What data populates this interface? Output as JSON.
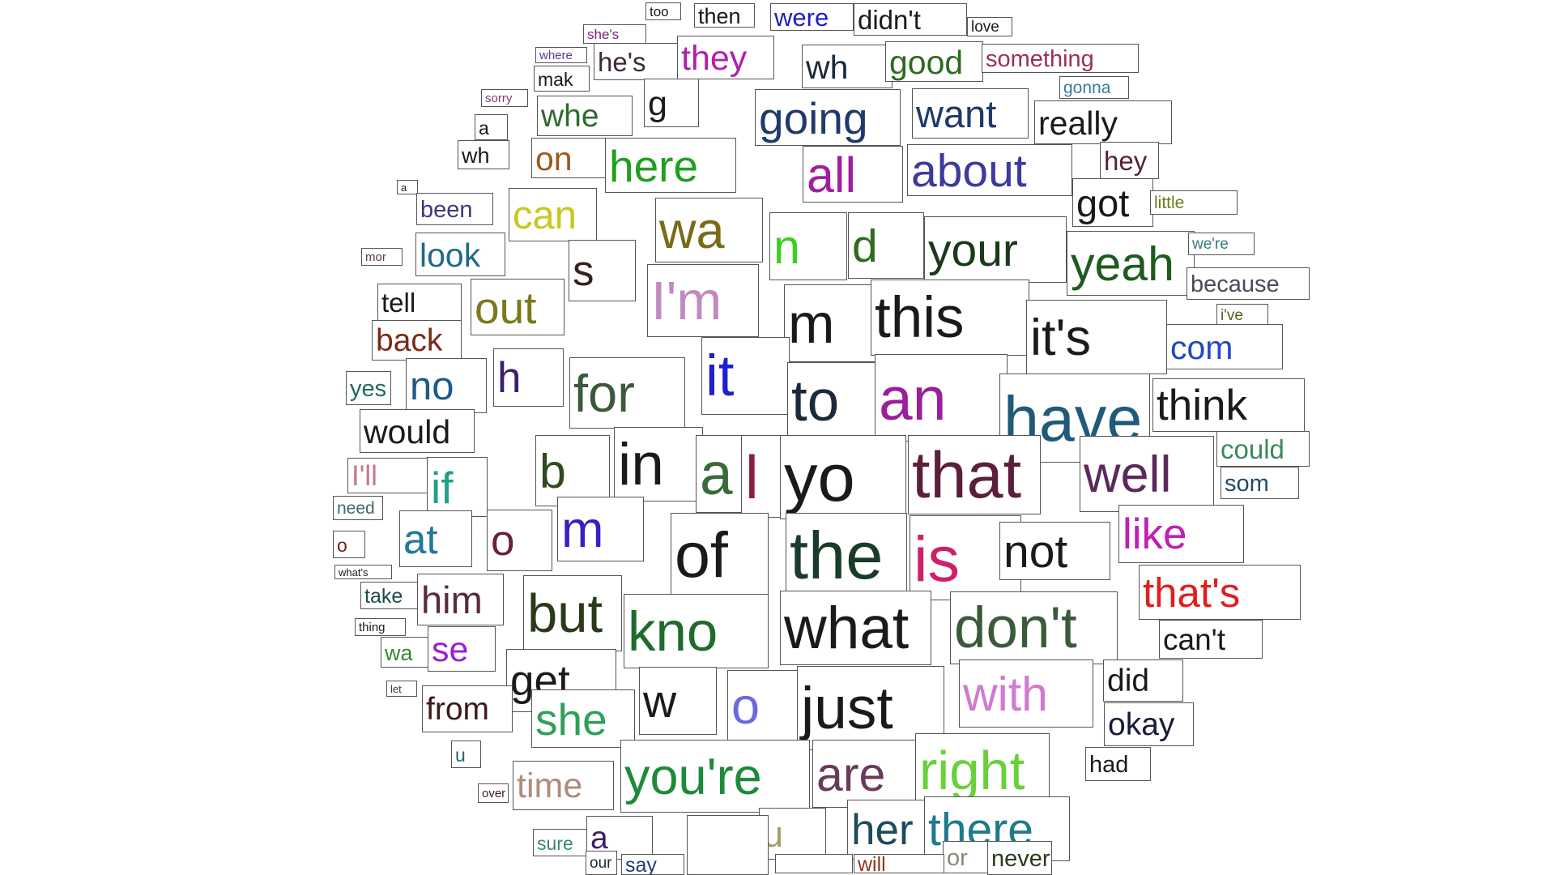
{
  "words": [
    {
      "text": "too",
      "color": "#1a1a1a"
    },
    {
      "text": "then",
      "color": "#1a1a1a"
    },
    {
      "text": "were",
      "color": "#1f1fc0"
    },
    {
      "text": "didn't",
      "color": "#1a1a1a"
    },
    {
      "text": "love",
      "color": "#1a1a1a"
    },
    {
      "text": "she's",
      "color": "#7a1f7a"
    },
    {
      "text": "where",
      "color": "#5a3a8a"
    },
    {
      "text": "he's",
      "color": "#3a2a3a"
    },
    {
      "text": "they",
      "color": "#b01fb0"
    },
    {
      "text": "wh",
      "color": "#1a2a3a"
    },
    {
      "text": "good",
      "color": "#2f6a1f"
    },
    {
      "text": "something",
      "color": "#9a2f5a"
    },
    {
      "text": "mak",
      "color": "#1a1a1a"
    },
    {
      "text": "gonna",
      "color": "#3a7a9a"
    },
    {
      "text": "sorry",
      "color": "#7a3a7a"
    },
    {
      "text": "g",
      "color": "#1a1a1a"
    },
    {
      "text": "whe",
      "color": "#2f6a2f"
    },
    {
      "text": "going",
      "color": "#1f3a6a"
    },
    {
      "text": "want",
      "color": "#1f3a6a"
    },
    {
      "text": "really",
      "color": "#1a1a1a"
    },
    {
      "text": "a",
      "color": "#1a1a1a"
    },
    {
      "text": "wh",
      "color": "#1a1a1a"
    },
    {
      "text": "on",
      "color": "#9a5a1a"
    },
    {
      "text": "here",
      "color": "#1fa01f"
    },
    {
      "text": "all",
      "color": "#a01fa0"
    },
    {
      "text": "about",
      "color": "#3a3aa0"
    },
    {
      "text": "hey",
      "color": "#5a1f3a"
    },
    {
      "text": "a",
      "color": "#1a1a1a"
    },
    {
      "text": "been",
      "color": "#3a3a7a"
    },
    {
      "text": "can",
      "color": "#c8c81f"
    },
    {
      "text": "got",
      "color": "#1a1a1a"
    },
    {
      "text": "little",
      "color": "#6a7a1f"
    },
    {
      "text": "wa",
      "color": "#7a6a1a"
    },
    {
      "text": "n",
      "color": "#3ad01f"
    },
    {
      "text": "d",
      "color": "#2f6a1f"
    },
    {
      "text": "your",
      "color": "#1a3a1a"
    },
    {
      "text": "yeah",
      "color": "#1f5a1f"
    },
    {
      "text": "we're",
      "color": "#3a7a7a"
    },
    {
      "text": "mor",
      "color": "#5a3a3a"
    },
    {
      "text": "look",
      "color": "#1f6a8a"
    },
    {
      "text": "s",
      "color": "#3a1f1f"
    },
    {
      "text": "I'm",
      "color": "#c08ac0"
    },
    {
      "text": "because",
      "color": "#4a4a5a"
    },
    {
      "text": "tell",
      "color": "#1a1a1a"
    },
    {
      "text": "out",
      "color": "#7a7a1a"
    },
    {
      "text": "m",
      "color": "#1a1a1a"
    },
    {
      "text": "this",
      "color": "#1a1a1a"
    },
    {
      "text": "it's",
      "color": "#1a1a1a"
    },
    {
      "text": "i've",
      "color": "#5a5a1a"
    },
    {
      "text": "back",
      "color": "#7a2a1a"
    },
    {
      "text": "com",
      "color": "#1f4ac0"
    },
    {
      "text": "h",
      "color": "#3a1f6a"
    },
    {
      "text": "it",
      "color": "#1f1fd0"
    },
    {
      "text": "yes",
      "color": "#1f6a5a"
    },
    {
      "text": "no",
      "color": "#1f5a8a"
    },
    {
      "text": "for",
      "color": "#3a5a3a"
    },
    {
      "text": "to",
      "color": "#1a2a3a"
    },
    {
      "text": "an",
      "color": "#9a1f9a"
    },
    {
      "text": "have",
      "color": "#1f5a7a"
    },
    {
      "text": "think",
      "color": "#1a1a1a"
    },
    {
      "text": "would",
      "color": "#1a1a1a"
    },
    {
      "text": "could",
      "color": "#3a8a5a"
    },
    {
      "text": "b",
      "color": "#2f4a1f"
    },
    {
      "text": "in",
      "color": "#1a1a1a"
    },
    {
      "text": "a",
      "color": "#3a6a3a"
    },
    {
      "text": "l",
      "color": "#8a1f3a"
    },
    {
      "text": "yo",
      "color": "#1a1a1a"
    },
    {
      "text": "that",
      "color": "#5a1f3a"
    },
    {
      "text": "well",
      "color": "#5a2a5a"
    },
    {
      "text": "I'll",
      "color": "#c07a8a"
    },
    {
      "text": "if",
      "color": "#1fa08a"
    },
    {
      "text": "som",
      "color": "#1f4a6a"
    },
    {
      "text": "need",
      "color": "#3a6a6a"
    },
    {
      "text": "at",
      "color": "#1f7a9a"
    },
    {
      "text": "o",
      "color": "#6a1f3a"
    },
    {
      "text": "m",
      "color": "#3a1fc0"
    },
    {
      "text": "of",
      "color": "#1a1a1a"
    },
    {
      "text": "the",
      "color": "#1a3a2a"
    },
    {
      "text": "is",
      "color": "#d01f6a"
    },
    {
      "text": "not",
      "color": "#1a1a1a"
    },
    {
      "text": "like",
      "color": "#c01fb0"
    },
    {
      "text": "o",
      "color": "#6a1f1f"
    },
    {
      "text": "what's",
      "color": "#1a1a1a"
    },
    {
      "text": "take",
      "color": "#1f4a4a"
    },
    {
      "text": "him",
      "color": "#5a2a3a"
    },
    {
      "text": "but",
      "color": "#2a3a1a"
    },
    {
      "text": "kno",
      "color": "#1f6a2f"
    },
    {
      "text": "what",
      "color": "#1a1a1a"
    },
    {
      "text": "don't",
      "color": "#3a5a3a"
    },
    {
      "text": "that's",
      "color": "#e01f1f"
    },
    {
      "text": "thing",
      "color": "#1a1a1a"
    },
    {
      "text": "can't",
      "color": "#1a1a1a"
    },
    {
      "text": "wa",
      "color": "#2f8a2f"
    },
    {
      "text": "se",
      "color": "#9a1fd0"
    },
    {
      "text": "get",
      "color": "#1a1a1a"
    },
    {
      "text": "let",
      "color": "#3a3a3a"
    },
    {
      "text": "from",
      "color": "#3a1a1a"
    },
    {
      "text": "w",
      "color": "#1a1a1a"
    },
    {
      "text": "o",
      "color": "#6a6ae0"
    },
    {
      "text": "just",
      "color": "#1a1a1a"
    },
    {
      "text": "with",
      "color": "#d07ad0"
    },
    {
      "text": "did",
      "color": "#1a1a1a"
    },
    {
      "text": "okay",
      "color": "#1a1a3a"
    },
    {
      "text": "she",
      "color": "#2fa05a"
    },
    {
      "text": "u",
      "color": "#1f6a6a"
    },
    {
      "text": "you're",
      "color": "#1f8a3a"
    },
    {
      "text": "are",
      "color": "#6a3a5a"
    },
    {
      "text": "right",
      "color": "#6ad03a"
    },
    {
      "text": "had",
      "color": "#1a1a1a"
    },
    {
      "text": "over",
      "color": "#3a1a1a"
    },
    {
      "text": "time",
      "color": "#b08a7a"
    },
    {
      "text": "u",
      "color": "#a0a06a"
    },
    {
      "text": "her",
      "color": "#1f4a5a"
    },
    {
      "text": "there",
      "color": "#1f7a8a"
    },
    {
      "text": "sure",
      "color": "#3a8a6a"
    },
    {
      "text": "a",
      "color": "#3a1f6a"
    },
    {
      "text": "or",
      "color": "#8a8a7a"
    },
    {
      "text": "never",
      "color": "#2a3a1a"
    },
    {
      "text": "our",
      "color": "#1a2a3a"
    },
    {
      "text": "say",
      "color": "#1f3a7a"
    },
    {
      "text": "will",
      "color": "#8a3a1a"
    },
    {
      "text": "",
      "color": "#1a1a1a"
    },
    {
      "text": "",
      "color": "#1a1a1a"
    }
  ]
}
